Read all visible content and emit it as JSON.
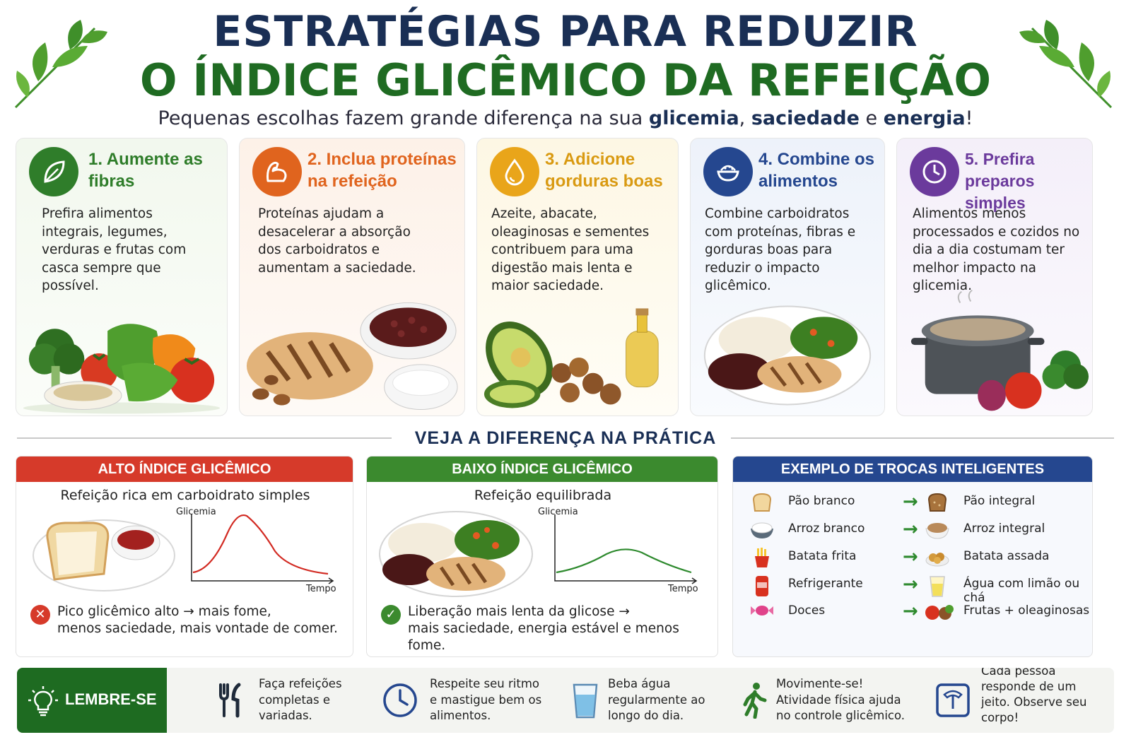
{
  "header": {
    "title_line1": "ESTRATÉGIAS PARA REDUZIR",
    "title_line2": "O ÍNDICE GLICÊMICO DA REFEIÇÃO",
    "subtitle_prefix": "Pequenas escolhas fazem grande diferença na sua ",
    "subtitle_b1": "glicemia",
    "subtitle_sep1": ", ",
    "subtitle_b2": "saciedade",
    "subtitle_sep2": " e ",
    "subtitle_b3": "energia",
    "subtitle_end": "!"
  },
  "colors": {
    "navy": "#1a2f55",
    "green": "#1f6b22",
    "orange": "#e0641e",
    "yellow": "#e5a61c",
    "blue": "#25478f",
    "purple": "#6b3a9c",
    "red": "#d63a2a",
    "accent_green": "#3b8a2e"
  },
  "strategies": [
    {
      "title": "1. Aumente as fibras",
      "text": "Prefira alimentos integrais, legumes, verduras e frutas com casca sempre que possível.",
      "icon": "leaf-icon"
    },
    {
      "title": "2. Inclua proteínas na refeição",
      "text": "Proteínas ajudam a desacelerar a absorção dos carboidratos e aumentam a saciedade.",
      "icon": "muscle-icon"
    },
    {
      "title": "3. Adicione gorduras boas",
      "text": "Azeite, abacate, oleaginosas e sementes contribuem para uma digestão mais lenta e maior saciedade.",
      "icon": "drop-icon"
    },
    {
      "title": "4. Combine os alimentos",
      "text": "Combine carboidratos com proteínas, fibras e gorduras boas para reduzir o impacto glicêmico.",
      "icon": "bowl-icon"
    },
    {
      "title": "5. Prefira preparos simples",
      "text": "Alimentos menos processados e cozidos no dia a dia costumam ter melhor impacto na glicemia.",
      "icon": "clock-icon"
    }
  ],
  "section_title": "VEJA A DIFERENÇA NA PRÁTICA",
  "high_gi": {
    "header": "ALTO ÍNDICE GLICÊMICO",
    "subtitle": "Refeição rica em carboidrato simples",
    "y_label": "Glicemia",
    "x_label": "Tempo",
    "result_line1": "Pico glicêmico alto → mais fome,",
    "result_line2": "menos saciedade, mais vontade de comer."
  },
  "low_gi": {
    "header": "BAIXO ÍNDICE GLICÊMICO",
    "subtitle": "Refeição equilibrada",
    "y_label": "Glicemia",
    "x_label": "Tempo",
    "result_line1": "Liberação mais lenta da glicose →",
    "result_line2": "mais saciedade, energia estável e menos fome."
  },
  "swaps": {
    "header": "EXEMPLO DE TROCAS INTELIGENTES",
    "rows": [
      {
        "from": "Pão branco",
        "to": "Pão integral",
        "from_icon": "bread-icon",
        "to_icon": "whole-bread-icon"
      },
      {
        "from": "Arroz branco",
        "to": "Arroz integral",
        "from_icon": "rice-icon",
        "to_icon": "brown-rice-icon"
      },
      {
        "from": "Batata frita",
        "to": "Batata assada",
        "from_icon": "fries-icon",
        "to_icon": "baked-potato-icon"
      },
      {
        "from": "Refrigerante",
        "to": "Água com limão ou chá",
        "from_icon": "soda-icon",
        "to_icon": "lemon-water-icon"
      },
      {
        "from": "Doces",
        "to": "Frutas + oleaginosas",
        "from_icon": "candy-icon",
        "to_icon": "fruit-nuts-icon"
      }
    ]
  },
  "remember": {
    "label": "LEMBRE-SE",
    "tips": [
      {
        "text": "Faça refeições completas e variadas.",
        "icon": "fork-knife-icon"
      },
      {
        "text": "Respeite seu ritmo e mastigue bem os alimentos.",
        "icon": "clock-icon"
      },
      {
        "text": "Beba água regularmente ao longo do dia.",
        "icon": "water-glass-icon"
      },
      {
        "text": "Movimente-se! Atividade física ajuda no controle glicêmico.",
        "icon": "walking-icon"
      },
      {
        "text": "Cada pessoa responde de um jeito. Observe seu corpo!",
        "icon": "scale-icon"
      }
    ]
  }
}
